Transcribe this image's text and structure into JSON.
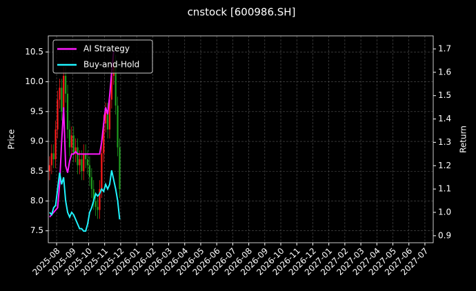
{
  "chart_data": {
    "type": "candlestick",
    "title": "cnstock [600986.SH]",
    "ylabel": "Price",
    "y2label": "Return",
    "grid": true,
    "legend": "upper left",
    "xticks": [
      "2025-08",
      "2025-09",
      "2025-10",
      "2025-11",
      "2025-12",
      "2026-01",
      "2026-02",
      "2026-03",
      "2026-04",
      "2026-05",
      "2026-06",
      "2026-07",
      "2026-08",
      "2026-09",
      "2026-10",
      "2026-11",
      "2026-12",
      "2027-01",
      "2027-02",
      "2027-03",
      "2027-04",
      "2027-05",
      "2027-06",
      "2027-07"
    ],
    "ylim": [
      7.3,
      10.77
    ],
    "yticks": [
      7.5,
      {
        "value": 8,
        "label": "8.0"
      },
      8.5,
      {
        "value": 9,
        "label": "9.0"
      },
      9.5,
      {
        "value": 10,
        "label": "10.0"
      },
      10.5
    ],
    "y2lim": [
      0.87,
      1.756
    ],
    "y2ticks": [
      0.9,
      {
        "value": 1,
        "label": "1.0"
      },
      1.1,
      1.2,
      1.3,
      1.4,
      1.5,
      1.6,
      1.7
    ],
    "candles": {
      "up_color": "#ff1a1a",
      "down_color": "#1f9e1f",
      "x": [
        "2025-08",
        "2025-08",
        "2025-08",
        "2025-08",
        "2025-08",
        "2025-08",
        "2025-08",
        "2025-08",
        "2025-09",
        "2025-09",
        "2025-09",
        "2025-09",
        "2025-09",
        "2025-09",
        "2025-09",
        "2025-09",
        "2025-10",
        "2025-10",
        "2025-10",
        "2025-10",
        "2025-10",
        "2025-10",
        "2025-10",
        "2025-10",
        "2025-11",
        "2025-11",
        "2025-11",
        "2025-11",
        "2025-11",
        "2025-11",
        "2025-11",
        "2025-11",
        "2025-12",
        "2025-12",
        "2025-12",
        "2025-12"
      ],
      "open": [
        8.5,
        8.6,
        8.8,
        8.7,
        9.2,
        9.7,
        9.9,
        9.5,
        10.1,
        9.8,
        9.2,
        8.9,
        9.1,
        8.8,
        8.9,
        8.6,
        8.7,
        8.5,
        8.8,
        8.7,
        8.6,
        8.4,
        8.2,
        8.0,
        7.9,
        7.85,
        8.2,
        8.8,
        9.3,
        9.5,
        9.2,
        9.7,
        10.1,
        10.3,
        9.6,
        8.9
      ],
      "high": [
        8.75,
        8.95,
        8.95,
        9.35,
        9.85,
        10.05,
        10.05,
        10.25,
        10.25,
        9.95,
        9.35,
        9.25,
        9.25,
        9.05,
        9.05,
        8.85,
        8.85,
        8.95,
        8.95,
        8.85,
        8.75,
        8.55,
        8.35,
        8.15,
        8.05,
        8.35,
        8.95,
        9.45,
        9.65,
        9.65,
        9.85,
        10.25,
        10.45,
        10.45,
        9.75,
        9.05
      ],
      "low": [
        8.35,
        8.45,
        8.55,
        8.55,
        9.05,
        9.55,
        9.35,
        9.35,
        9.65,
        9.05,
        8.75,
        8.75,
        8.65,
        8.65,
        8.45,
        8.45,
        8.35,
        8.35,
        8.55,
        8.45,
        8.25,
        8.05,
        7.85,
        7.75,
        7.7,
        7.7,
        8.05,
        8.65,
        9.15,
        9.05,
        9.05,
        9.55,
        9.95,
        9.45,
        8.75,
        8.05
      ],
      "close": [
        8.6,
        8.8,
        8.7,
        9.2,
        9.7,
        9.9,
        9.5,
        10.1,
        9.8,
        9.2,
        8.9,
        9.1,
        8.8,
        8.9,
        8.6,
        8.7,
        8.5,
        8.8,
        8.7,
        8.6,
        8.4,
        8.2,
        8.0,
        7.9,
        7.85,
        8.2,
        8.8,
        9.3,
        9.5,
        9.2,
        9.7,
        10.1,
        10.3,
        9.6,
        8.9,
        8.2
      ]
    },
    "series": [
      {
        "name": "AI Strategy",
        "color": "#ff1aff",
        "axis": "y2",
        "values": [
          0.98,
          0.99,
          1.0,
          1.01,
          1.02,
          1.12,
          1.3,
          1.45,
          1.2,
          1.17,
          1.22,
          1.25,
          1.25,
          1.26,
          1.25,
          1.25,
          1.25,
          1.25,
          1.25,
          1.25,
          1.25,
          1.25,
          1.25,
          1.25,
          1.25,
          1.25,
          1.3,
          1.38,
          1.45,
          1.42,
          1.5,
          1.6,
          1.69,
          null,
          null,
          null
        ]
      },
      {
        "name": "Buy-and-Hold",
        "color": "#1ff5ff",
        "axis": "y2",
        "values": [
          1.0,
          0.99,
          1.02,
          1.03,
          1.1,
          1.17,
          1.12,
          1.15,
          1.05,
          1.0,
          0.98,
          1.0,
          0.99,
          0.97,
          0.95,
          0.93,
          0.93,
          0.92,
          0.92,
          0.95,
          1.0,
          1.02,
          1.05,
          1.08,
          1.07,
          1.08,
          1.1,
          1.09,
          1.12,
          1.1,
          1.12,
          1.18,
          1.14,
          1.1,
          1.05,
          0.97
        ]
      }
    ]
  }
}
